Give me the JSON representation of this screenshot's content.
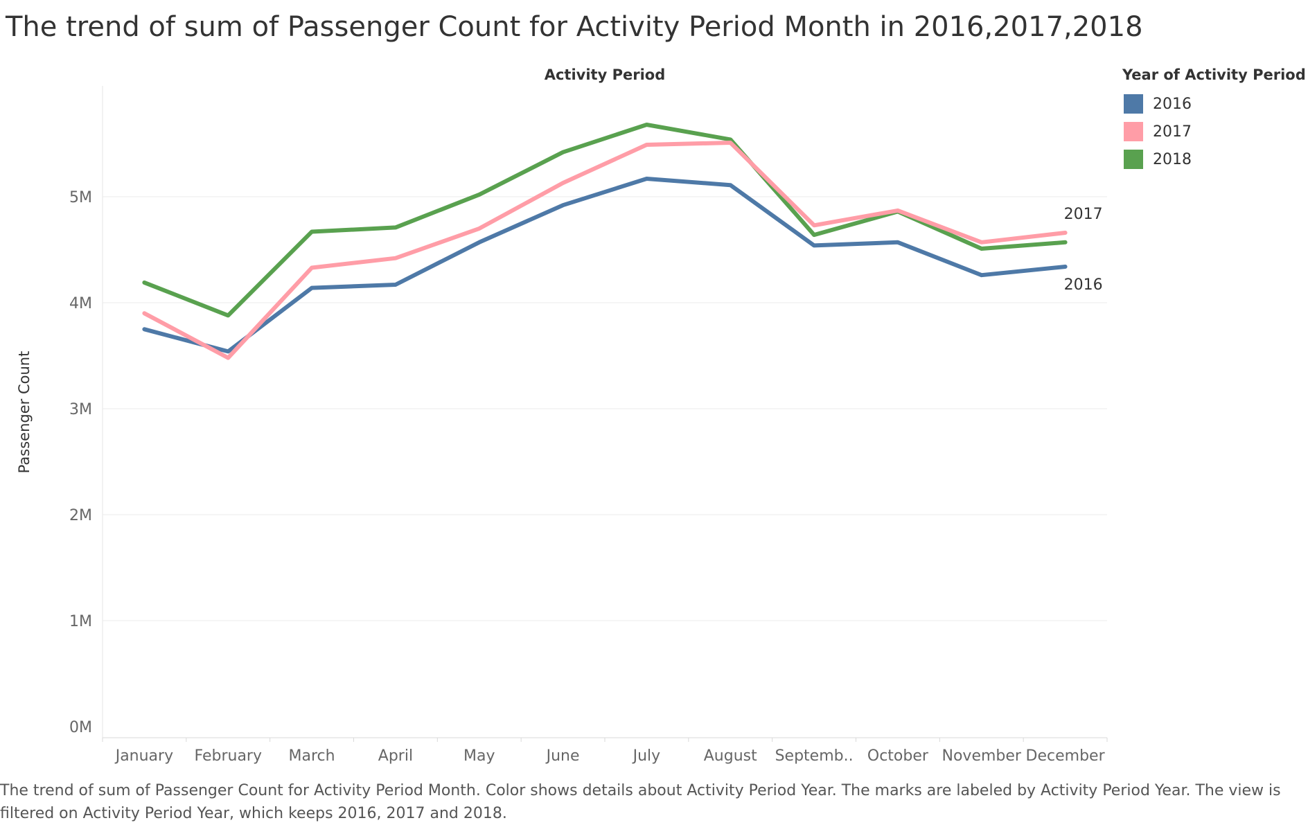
{
  "page": {
    "title": "The trend of sum of Passenger Count for Activity Period Month in 2016,2017,2018",
    "caption": "The trend of sum of Passenger Count for Activity Period Month.  Color shows details about Activity Period Year.  The marks are labeled by Activity Period Year. The view is filtered on Activity Period Year, which keeps 2016, 2017 and 2018."
  },
  "legend": {
    "title": "Year of Activity Period",
    "items": [
      {
        "label": "2016",
        "color": "#4e79a7"
      },
      {
        "label": "2017",
        "color": "#ff9da7"
      },
      {
        "label": "2018",
        "color": "#59a14f"
      }
    ]
  },
  "chart_data": {
    "type": "line",
    "title": "",
    "column_header": "Activity Period",
    "ylabel": "Passenger Count",
    "ylim": [
      0,
      6.0
    ],
    "y_unit": "M",
    "yticks": [
      0,
      1,
      2,
      3,
      4,
      5
    ],
    "ytick_labels": [
      "0M",
      "1M",
      "2M",
      "3M",
      "4M",
      "5M"
    ],
    "categories": [
      "January",
      "February",
      "March",
      "April",
      "May",
      "June",
      "July",
      "August",
      "Septemb..",
      "October",
      "November",
      "December"
    ],
    "grid": true,
    "legend_position": "right",
    "series": [
      {
        "name": "2016",
        "color": "#4e79a7",
        "end_label": "2016",
        "values": [
          3.75,
          3.54,
          4.14,
          4.17,
          4.57,
          4.92,
          5.17,
          5.11,
          4.54,
          4.57,
          4.26,
          4.34
        ]
      },
      {
        "name": "2017",
        "color": "#ff9da7",
        "end_label": "2017",
        "values": [
          3.9,
          3.48,
          4.33,
          4.42,
          4.7,
          5.13,
          5.49,
          5.51,
          4.73,
          4.87,
          4.57,
          4.66
        ]
      },
      {
        "name": "2018",
        "color": "#59a14f",
        "end_label": "",
        "values": [
          4.19,
          3.88,
          4.67,
          4.71,
          5.02,
          5.42,
          5.68,
          5.54,
          4.64,
          4.86,
          4.51,
          4.57
        ]
      }
    ]
  }
}
